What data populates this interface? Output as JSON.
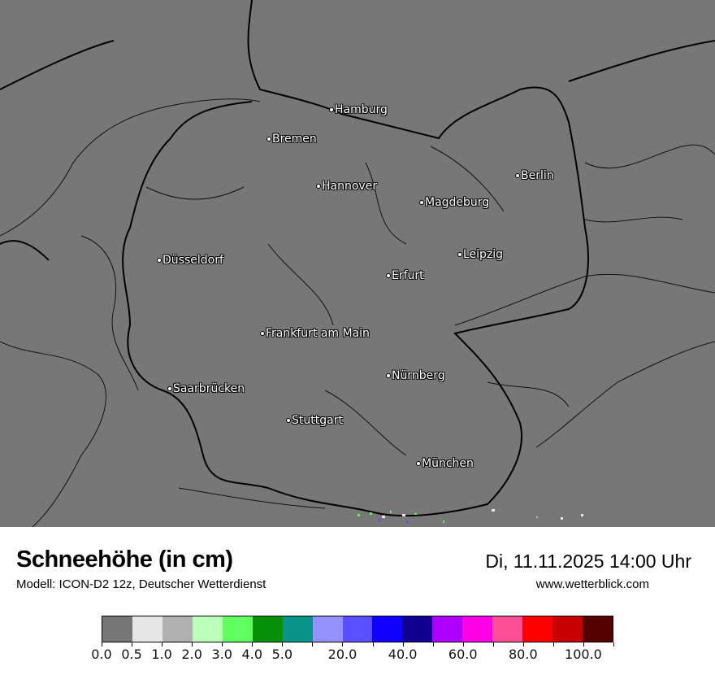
{
  "map": {
    "background_color": "#777777",
    "cities": [
      {
        "name": "Hamburg"
      },
      {
        "name": "Bremen"
      },
      {
        "name": "Berlin"
      },
      {
        "name": "Hannover"
      },
      {
        "name": "Magdeburg"
      },
      {
        "name": "Düsseldorf"
      },
      {
        "name": "Leipzig"
      },
      {
        "name": "Erfurt"
      },
      {
        "name": "Frankfurt am Main"
      },
      {
        "name": "Nürnberg"
      },
      {
        "name": "Saarbrücken"
      },
      {
        "name": "Stuttgart"
      },
      {
        "name": "München"
      }
    ]
  },
  "header": {
    "title": "Schneehöhe (in cm)",
    "subtitle": "Modell: ICON-D2 12z, Deutscher Wetterdienst",
    "datetime": "Di, 11.11.2025 14:00 Uhr",
    "website": "www.wetterblick.com"
  },
  "legend": {
    "colors": [
      "#777777",
      "#e6e6e6",
      "#b0b0b0",
      "#bbffbb",
      "#5eff5e",
      "#089108",
      "#089488",
      "#9592ff",
      "#5a50ff",
      "#0f00ff",
      "#0f008f",
      "#ae00ff",
      "#ff00e6",
      "#ff4f96",
      "#ff0000",
      "#c80000",
      "#550000"
    ],
    "tick_labels": [
      "0.0",
      "0.5",
      "1.0",
      "2.0",
      "3.0",
      "4.0",
      "5.0",
      "",
      "20.0",
      "",
      "40.0",
      "",
      "60.0",
      "",
      "80.0",
      "",
      "100.0",
      ""
    ]
  }
}
